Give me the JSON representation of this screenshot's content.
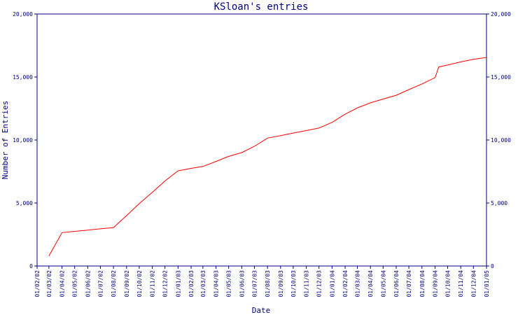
{
  "chart_data": {
    "type": "line",
    "title": "KSloan's entries",
    "xlabel": "Date",
    "ylabel": "Number of Entries",
    "ylim": [
      0,
      20000
    ],
    "yticks": [
      "0",
      "5,000",
      "10,000",
      "15,000",
      "20,000"
    ],
    "ytick_values": [
      0,
      5000,
      10000,
      15000,
      20000
    ],
    "right_axis": true,
    "grid": false,
    "xticks": [
      "01/02/02",
      "01/03/02",
      "01/04/02",
      "01/05/02",
      "01/06/02",
      "01/07/02",
      "01/08/02",
      "01/09/02",
      "01/10/02",
      "01/11/02",
      "01/12/02",
      "01/01/03",
      "01/02/03",
      "01/03/03",
      "01/04/03",
      "01/05/03",
      "01/06/03",
      "01/07/03",
      "01/08/03",
      "01/09/03",
      "01/10/03",
      "01/11/03",
      "01/12/03",
      "01/01/04",
      "01/02/04",
      "01/03/04",
      "01/04/04",
      "01/05/04",
      "01/06/04",
      "01/07/04",
      "01/08/04",
      "01/09/04",
      "01/10/04",
      "01/11/04",
      "01/12/04",
      "01/01/05"
    ],
    "xrange": [
      "2002-02-01",
      "2005-01-01"
    ],
    "series": [
      {
        "color": "#ff0000",
        "points": [
          [
            "2002-03-01",
            800
          ],
          [
            "2002-04-01",
            2650
          ],
          [
            "2002-05-01",
            2750
          ],
          [
            "2002-06-01",
            2850
          ],
          [
            "2002-07-01",
            2950
          ],
          [
            "2002-08-01",
            3050
          ],
          [
            "2002-09-01",
            4000
          ],
          [
            "2002-10-01",
            4950
          ],
          [
            "2002-11-01",
            5850
          ],
          [
            "2002-12-01",
            6750
          ],
          [
            "2003-01-01",
            7550
          ],
          [
            "2003-02-01",
            7750
          ],
          [
            "2003-03-01",
            7900
          ],
          [
            "2003-04-01",
            8300
          ],
          [
            "2003-05-01",
            8700
          ],
          [
            "2003-06-01",
            9000
          ],
          [
            "2003-07-01",
            9500
          ],
          [
            "2003-08-01",
            10150
          ],
          [
            "2003-09-01",
            10350
          ],
          [
            "2003-10-01",
            10550
          ],
          [
            "2003-11-01",
            10750
          ],
          [
            "2003-12-01",
            10950
          ],
          [
            "2004-01-01",
            11400
          ],
          [
            "2004-02-01",
            12050
          ],
          [
            "2004-03-01",
            12550
          ],
          [
            "2004-04-01",
            12950
          ],
          [
            "2004-05-01",
            13250
          ],
          [
            "2004-06-01",
            13550
          ],
          [
            "2004-07-01",
            14000
          ],
          [
            "2004-08-01",
            14450
          ],
          [
            "2004-09-01",
            14950
          ],
          [
            "2004-09-10",
            15800
          ],
          [
            "2004-10-01",
            15950
          ],
          [
            "2004-11-01",
            16200
          ],
          [
            "2004-12-01",
            16400
          ],
          [
            "2005-01-01",
            16550
          ]
        ]
      }
    ]
  }
}
